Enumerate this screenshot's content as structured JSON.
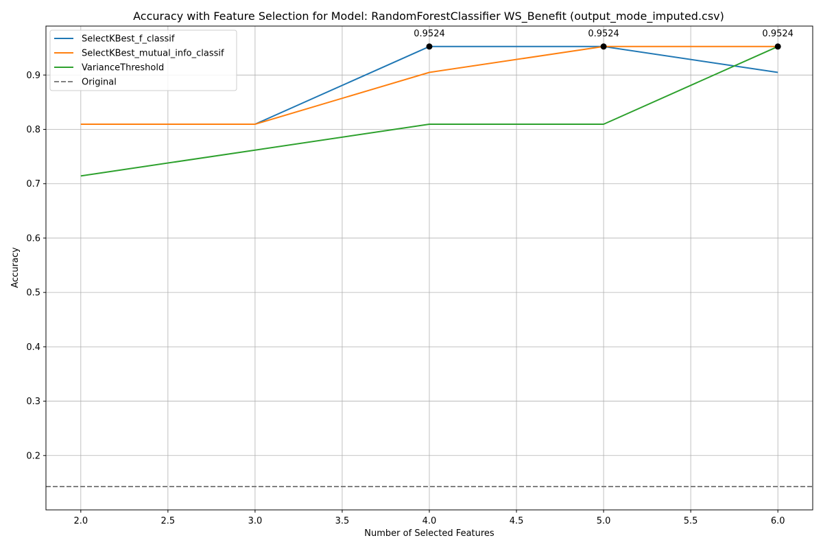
{
  "chart_data": {
    "type": "line",
    "title": "Accuracy with Feature Selection for Model: RandomForestClassifier WS_Benefit (output_mode_imputed.csv)",
    "xlabel": "Number of Selected Features",
    "ylabel": "Accuracy",
    "x": [
      2,
      3,
      4,
      5,
      6
    ],
    "xlim": [
      1.8,
      6.2
    ],
    "ylim": [
      0.1,
      0.99
    ],
    "xticks": [
      "2.0",
      "2.5",
      "3.0",
      "3.5",
      "4.0",
      "4.5",
      "5.0",
      "5.5",
      "6.0"
    ],
    "yticks": [
      "0.2",
      "0.3",
      "0.4",
      "0.5",
      "0.6",
      "0.7",
      "0.8",
      "0.9"
    ],
    "grid": true,
    "legend_position": "top-left",
    "series": [
      {
        "name": "SelectKBest_f_classif",
        "color": "#1f77b4",
        "values": [
          0.8095,
          0.8095,
          0.9524,
          0.9524,
          0.9048
        ]
      },
      {
        "name": "SelectKBest_mutual_info_classif",
        "color": "#ff7f0e",
        "values": [
          0.8095,
          0.8095,
          0.9048,
          0.9524,
          0.9524
        ]
      },
      {
        "name": "VarianceThreshold",
        "color": "#2ca02c",
        "values": [
          0.7143,
          0.7619,
          0.8095,
          0.8095,
          0.9524
        ]
      }
    ],
    "baseline": {
      "name": "Original",
      "value": 0.1429,
      "color": "#808080",
      "style": "dashed"
    },
    "annotations": [
      {
        "x": 4,
        "y": 0.9524,
        "text": "0.9524"
      },
      {
        "x": 5,
        "y": 0.9524,
        "text": "0.9524"
      },
      {
        "x": 6,
        "y": 0.9524,
        "text": "0.9524"
      }
    ]
  }
}
